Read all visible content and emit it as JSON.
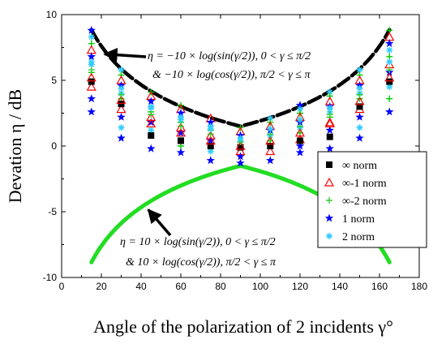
{
  "chart_data": {
    "type": "scatter",
    "xlabel": "Angle of the polarization of 2 incidents γ°",
    "ylabel": "Devation η / dB",
    "xlim": [
      0,
      180
    ],
    "ylim": [
      -10,
      10
    ],
    "xticks": [
      0,
      20,
      40,
      60,
      80,
      100,
      120,
      140,
      160,
      180
    ],
    "yticks": [
      -10,
      -5,
      0,
      5,
      10
    ],
    "grid": false,
    "legend_position": "right",
    "x": [
      15,
      30,
      45,
      60,
      75,
      90,
      105,
      120,
      135,
      150,
      165
    ],
    "series": [
      {
        "name": "∞   norm",
        "marker": "square",
        "color": "#000000",
        "values": [
          4.9,
          3.2,
          0.8,
          0.4,
          0.0,
          -0.1,
          0.0,
          0.4,
          0.7,
          3.0,
          4.9
        ]
      },
      {
        "name": "∞-1 norm",
        "marker": "triangle",
        "color": "#ff0000",
        "values": [
          5.2,
          3.5,
          1.7,
          1.0,
          0.4,
          0.0,
          0.4,
          1.0,
          1.7,
          3.4,
          5.2
        ]
      },
      {
        "name": "∞-2 norm",
        "marker": "plus",
        "color": "#33cc33",
        "values": [
          5.8,
          3.9,
          2.4,
          1.5,
          0.9,
          0.3,
          0.9,
          1.5,
          2.4,
          3.9,
          5.8
        ]
      },
      {
        "name": "1   norm",
        "marker": "star",
        "color": "#0000ff",
        "values": [
          2.6,
          0.6,
          -0.2,
          -0.5,
          -1.1,
          -1.3,
          -1.1,
          -0.5,
          -0.2,
          0.6,
          2.6
        ]
      },
      {
        "name": "2   norm",
        "marker": "asterisk",
        "color": "#33ccff",
        "values": [
          6.4,
          4.4,
          2.9,
          2.0,
          1.3,
          0.6,
          1.3,
          2.0,
          2.9,
          4.4,
          6.4
        ]
      }
    ],
    "extra_markers": {
      "note": "",
      "colors": [
        "#0000ff",
        "#33ccff",
        "#00cc00",
        "#ff0000"
      ],
      "points": [
        [
          15,
          8.8
        ],
        [
          15,
          8.3
        ],
        [
          15,
          7.8
        ],
        [
          15,
          7.3
        ],
        [
          15,
          6.8
        ],
        [
          15,
          6.2
        ],
        [
          15,
          5.6
        ],
        [
          15,
          4.5
        ],
        [
          15,
          3.6
        ],
        [
          30,
          5.8
        ],
        [
          30,
          5.4
        ],
        [
          30,
          5.0
        ],
        [
          30,
          4.6
        ],
        [
          30,
          4.0
        ],
        [
          30,
          3.6
        ],
        [
          30,
          2.8
        ],
        [
          30,
          2.2
        ],
        [
          30,
          1.4
        ],
        [
          45,
          4.1
        ],
        [
          45,
          3.8
        ],
        [
          45,
          3.4
        ],
        [
          45,
          3.0
        ],
        [
          45,
          2.6
        ],
        [
          45,
          2.2
        ],
        [
          45,
          1.8
        ],
        [
          45,
          1.2
        ],
        [
          60,
          3.1
        ],
        [
          60,
          2.8
        ],
        [
          60,
          2.5
        ],
        [
          60,
          2.2
        ],
        [
          60,
          1.8
        ],
        [
          60,
          1.4
        ],
        [
          60,
          1.0
        ],
        [
          60,
          0.5
        ],
        [
          60,
          0.0
        ],
        [
          75,
          2.1
        ],
        [
          75,
          1.8
        ],
        [
          75,
          1.5
        ],
        [
          75,
          1.2
        ],
        [
          75,
          0.8
        ],
        [
          75,
          0.4
        ],
        [
          75,
          -0.4
        ],
        [
          90,
          1.4
        ],
        [
          90,
          1.1
        ],
        [
          90,
          0.8
        ],
        [
          90,
          0.4
        ],
        [
          90,
          0.0
        ],
        [
          90,
          -0.4
        ],
        [
          90,
          -0.8
        ],
        [
          105,
          2.1
        ],
        [
          105,
          1.8
        ],
        [
          105,
          1.5
        ],
        [
          105,
          1.2
        ],
        [
          105,
          0.8
        ],
        [
          105,
          0.4
        ],
        [
          105,
          -0.4
        ],
        [
          120,
          3.1
        ],
        [
          120,
          2.8
        ],
        [
          120,
          2.5
        ],
        [
          120,
          2.2
        ],
        [
          120,
          1.8
        ],
        [
          120,
          1.4
        ],
        [
          120,
          1.0
        ],
        [
          120,
          0.5
        ],
        [
          120,
          0.0
        ],
        [
          135,
          4.1
        ],
        [
          135,
          3.8
        ],
        [
          135,
          3.4
        ],
        [
          135,
          3.0
        ],
        [
          135,
          2.6
        ],
        [
          135,
          2.2
        ],
        [
          135,
          1.8
        ],
        [
          135,
          1.2
        ],
        [
          150,
          5.8
        ],
        [
          150,
          5.4
        ],
        [
          150,
          5.0
        ],
        [
          150,
          4.6
        ],
        [
          150,
          4.0
        ],
        [
          150,
          3.6
        ],
        [
          150,
          2.8
        ],
        [
          150,
          2.2
        ],
        [
          150,
          1.4
        ],
        [
          165,
          8.8
        ],
        [
          165,
          8.3
        ],
        [
          165,
          7.8
        ],
        [
          165,
          7.3
        ],
        [
          165,
          6.8
        ],
        [
          165,
          6.2
        ],
        [
          165,
          5.6
        ],
        [
          165,
          4.5
        ],
        [
          165,
          3.6
        ]
      ]
    },
    "curves": [
      {
        "name": "upper_bound",
        "color": "#000000",
        "style": "dashed-thick",
        "x": [
          15,
          30,
          45,
          60,
          75,
          90,
          105,
          120,
          135,
          150,
          165
        ],
        "values": [
          8.8,
          5.9,
          4.2,
          3.0,
          2.1,
          1.5,
          2.1,
          3.0,
          4.2,
          5.9,
          8.8
        ]
      },
      {
        "name": "lower_bound",
        "color": "#22dd22",
        "style": "solid-thick",
        "x": [
          15,
          30,
          45,
          60,
          75,
          90,
          105,
          120,
          135,
          150,
          165
        ],
        "values": [
          -8.8,
          -5.9,
          -4.2,
          -3.0,
          -2.1,
          -1.5,
          -2.1,
          -3.0,
          -4.2,
          -5.9,
          -8.8
        ]
      }
    ],
    "annotations": [
      {
        "text_line1": "η =  −10 × log(sin(γ/2)),  0 < γ ≤ π/2",
        "text_line2": "&  −10 × log(cos(γ/2)),  π/2 < γ ≤ π",
        "arrow_to": [
          20,
          7.0
        ],
        "anchor_data": [
          55,
          8.2
        ]
      },
      {
        "text_line1": "η = 10 × log(sin(γ/2)),  0 < γ ≤ π/2",
        "text_line2": "& 10 × log(cos(γ/2)),  π/2 < γ ≤ π",
        "arrow_to": [
          42,
          -4.6
        ],
        "anchor_data": [
          42,
          -7.2
        ]
      }
    ]
  }
}
